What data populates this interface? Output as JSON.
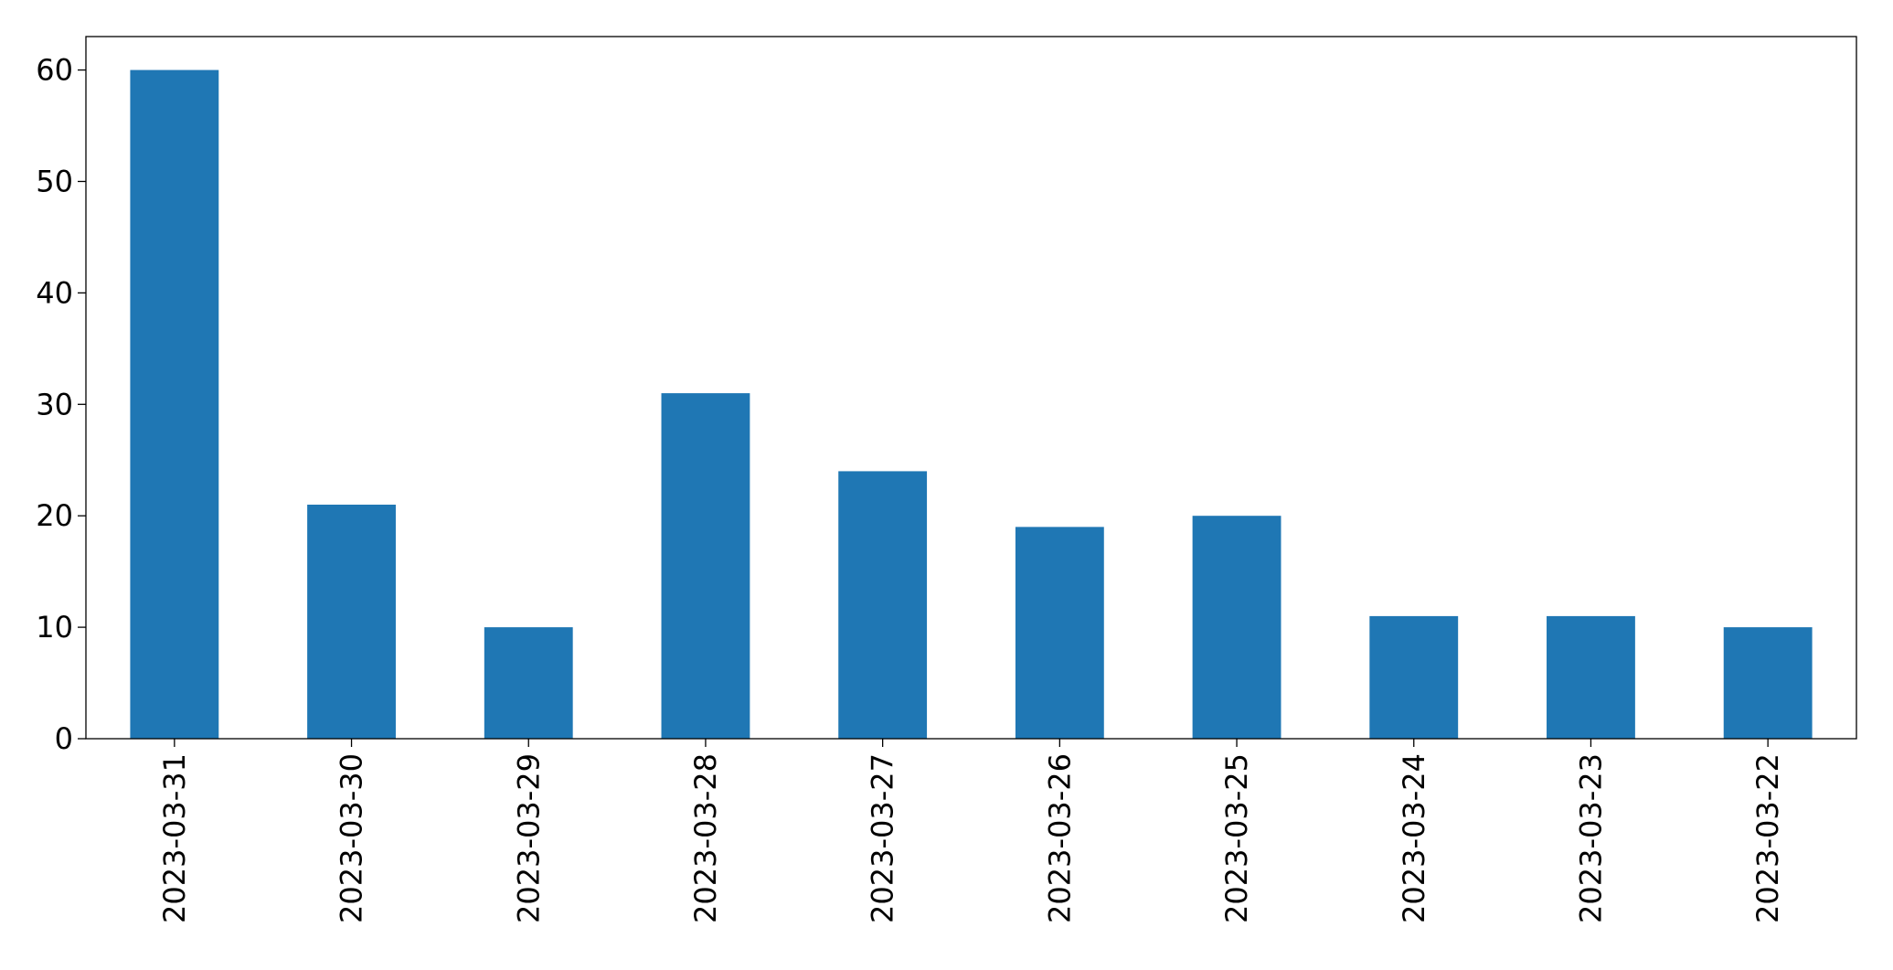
{
  "chart_data": {
    "type": "bar",
    "categories": [
      "2023-03-31",
      "2023-03-30",
      "2023-03-29",
      "2023-03-28",
      "2023-03-27",
      "2023-03-26",
      "2023-03-25",
      "2023-03-24",
      "2023-03-23",
      "2023-03-22"
    ],
    "values": [
      60,
      21,
      10,
      31,
      24,
      19,
      20,
      11,
      11,
      10
    ],
    "color": "#1f77b4",
    "ylim": [
      0,
      63
    ],
    "yticks": [
      0,
      10,
      20,
      30,
      40,
      50,
      60
    ],
    "grid": false
  }
}
